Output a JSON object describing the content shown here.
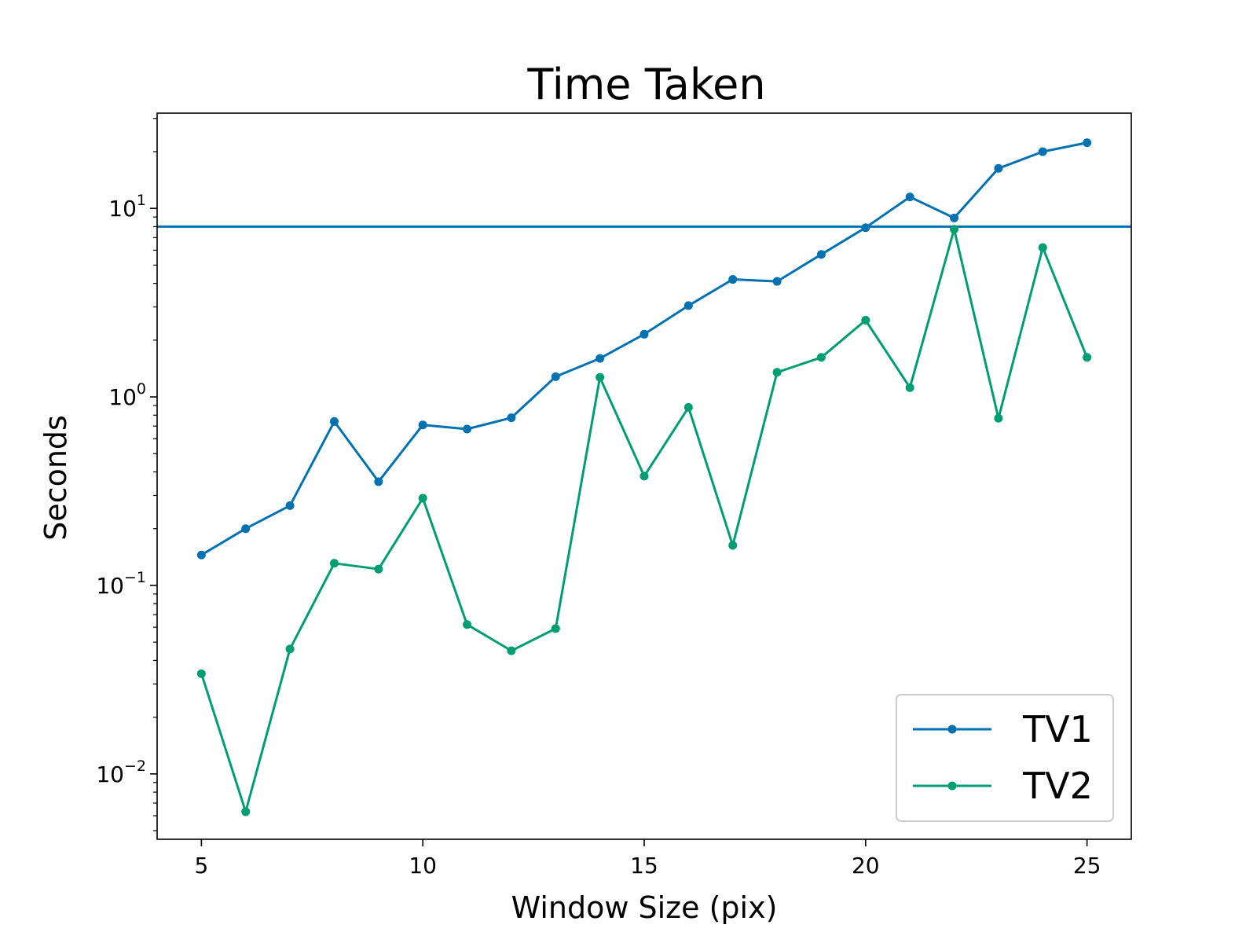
{
  "chart_data": {
    "type": "line",
    "title": "Time Taken",
    "xlabel": "Window Size (pix)",
    "ylabel": "Seconds",
    "yscale": "log",
    "xlim": [
      4,
      26
    ],
    "ylim": [
      0.0045,
      32
    ],
    "x_ticks": [
      5,
      10,
      15,
      20,
      25
    ],
    "y_ticks": [
      {
        "value": 0.01,
        "base": "10",
        "exp": "−2"
      },
      {
        "value": 0.1,
        "base": "10",
        "exp": "−1"
      },
      {
        "value": 1,
        "base": "10",
        "exp": "0"
      },
      {
        "value": 10,
        "base": "10",
        "exp": "1"
      }
    ],
    "grid": false,
    "legend_position": "lower-right",
    "x": [
      5,
      6,
      7,
      8,
      9,
      10,
      11,
      12,
      13,
      14,
      15,
      16,
      17,
      18,
      19,
      20,
      21,
      22,
      23,
      24,
      25
    ],
    "series": [
      {
        "name": "TV1",
        "color": "#0072b2",
        "marker": "circle",
        "values": [
          0.145,
          0.2,
          0.265,
          0.74,
          0.355,
          0.71,
          0.675,
          0.775,
          1.28,
          1.6,
          2.15,
          3.05,
          4.2,
          4.1,
          5.7,
          7.9,
          11.5,
          8.9,
          16.3,
          20.0,
          22.3
        ]
      },
      {
        "name": "TV2",
        "color": "#009e73",
        "marker": "circle",
        "values": [
          0.034,
          0.0063,
          0.046,
          0.131,
          0.122,
          0.29,
          0.062,
          0.045,
          0.059,
          1.27,
          0.38,
          0.88,
          0.163,
          1.35,
          1.62,
          2.55,
          1.12,
          7.75,
          0.77,
          6.2,
          1.62
        ]
      }
    ],
    "reference_lines": [
      {
        "type": "horizontal",
        "y": 8.0,
        "color": "#0072b2"
      }
    ]
  }
}
